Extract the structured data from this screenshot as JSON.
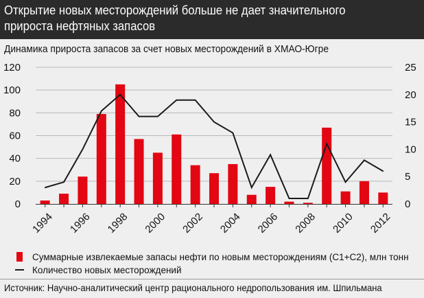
{
  "header": {
    "title": "Открытие новых месторождений больше не дает значительного прироста нефтяных запасов"
  },
  "chart_data": {
    "type": "bar",
    "subtitle": "Динамика прироста запасов за счет новых месторождений в ХМАО-Югре",
    "categories": [
      1994,
      1995,
      1996,
      1997,
      1998,
      1999,
      2000,
      2001,
      2002,
      2003,
      2004,
      2005,
      2006,
      2007,
      2008,
      2009,
      2010,
      2011,
      2012
    ],
    "x_tick_labels": [
      "1994",
      "1996",
      "1998",
      "2000",
      "2002",
      "2004",
      "2006",
      "2008",
      "2010",
      "2012"
    ],
    "y_left": {
      "ylim": [
        0,
        120
      ],
      "ticks": [
        0,
        20,
        40,
        60,
        80,
        100,
        120
      ]
    },
    "y_right": {
      "ylim": [
        0,
        25
      ],
      "ticks": [
        0,
        5,
        10,
        15,
        20,
        25
      ]
    },
    "series": [
      {
        "name": "Суммарные извлекаемые запасы нефти по новым месторождениям (С1+С2), млн тонн",
        "type": "bar",
        "axis": "left",
        "color": "#e30613",
        "values": [
          3,
          9,
          24,
          79,
          105,
          57,
          45,
          61,
          34,
          27,
          35,
          8,
          15,
          2,
          1,
          67,
          11,
          20,
          10
        ]
      },
      {
        "name": "Количество новых месторождений",
        "type": "line",
        "axis": "right",
        "color": "#1a1a1a",
        "values": [
          3,
          4,
          10,
          17,
          20,
          16,
          16,
          19,
          19,
          15,
          13,
          3,
          9,
          1,
          1,
          11,
          4,
          8,
          6
        ]
      }
    ]
  },
  "source": "Источник: Научно-аналитический центр рационального недропользования им. Шпильмана"
}
